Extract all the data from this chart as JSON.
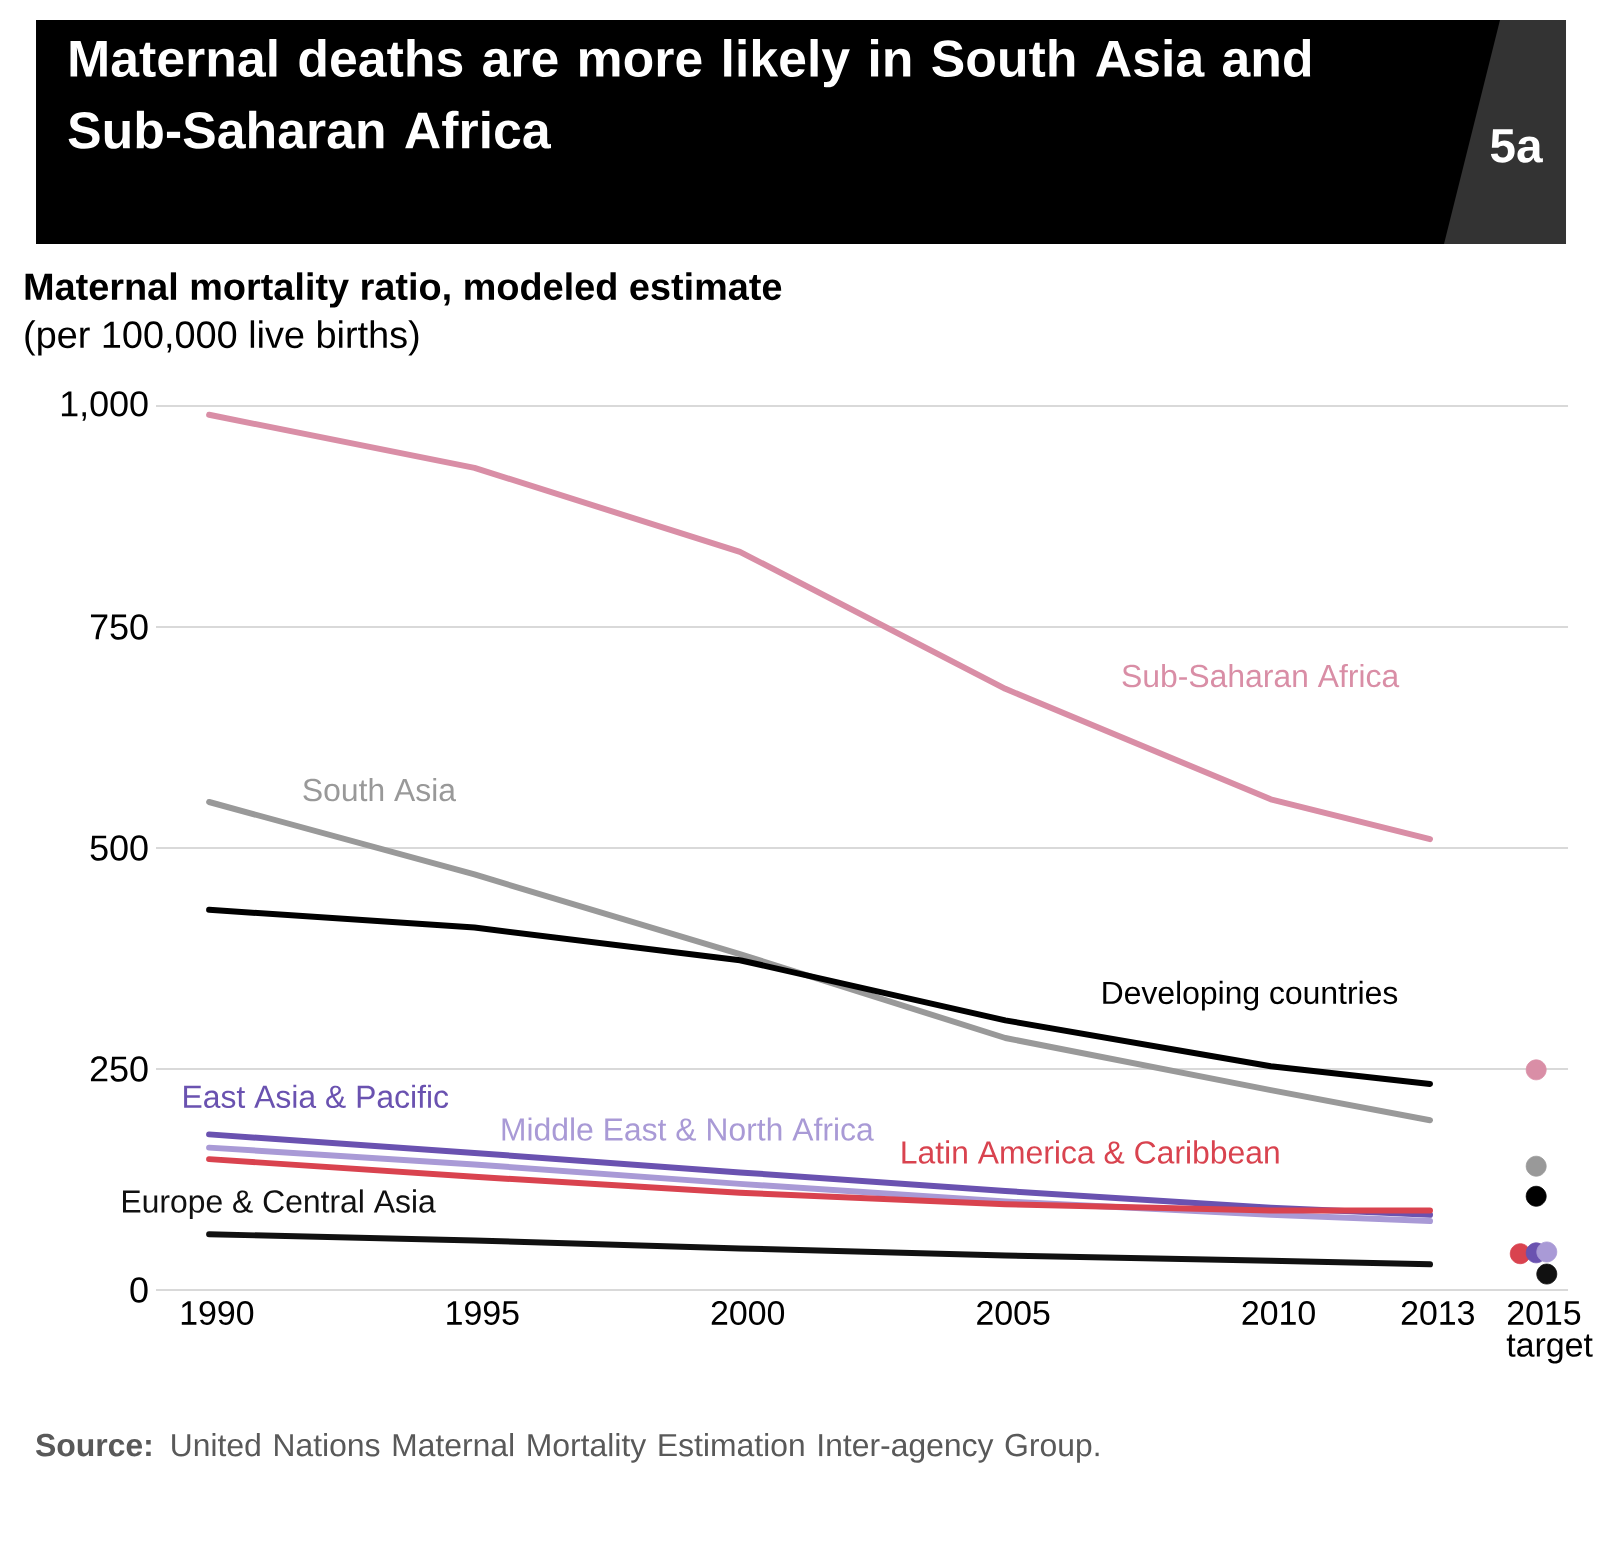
{
  "chart_data": {
    "type": "line",
    "title": "Maternal deaths are more likely in South Asia and Sub-Saharan Africa",
    "subtitle": "Maternal mortality ratio, modeled estimate",
    "ylabel": "(per 100,000 live births)",
    "annotations": [
      "5a",
      "**Source:** United Nations Maternal Mortality Estimation Inter-agency Group."
    ],
    "x": [
      1990,
      1995,
      2000,
      2005,
      2010,
      2013
    ],
    "xlim": [
      1989,
      2015.6
    ],
    "xticks": [
      1990,
      1995,
      2000,
      2005,
      2010,
      2013,
      {
        "value": 2015,
        "label": "2015 target"
      }
    ],
    "ylim": [
      0,
      1000
    ],
    "yticks": [
      0,
      250,
      500,
      750,
      {
        "value": 1000,
        "label": "1,000"
      }
    ],
    "grid": "y",
    "series": [
      {
        "name": "Sub-Saharan Africa",
        "color": "#d98ea6",
        "values": [
          990,
          930,
          835,
          680,
          555,
          510
        ]
      },
      {
        "name": "South Asia",
        "color": "#999999",
        "values": [
          552,
          470,
          380,
          285,
          226,
          192
        ]
      },
      {
        "name": "Developing countries",
        "color": "#000000",
        "values": [
          430,
          410,
          373,
          305,
          253,
          233
        ]
      },
      {
        "name": "East Asia & Pacific",
        "color": "#6a52b0",
        "values": [
          176,
          155,
          133,
          112,
          93,
          85
        ]
      },
      {
        "name": "Middle East & North Africa",
        "color": "#a99ad6",
        "values": [
          161,
          142,
          120,
          100,
          85,
          78
        ]
      },
      {
        "name": "Latin America & Caribbean",
        "color": "#d9434f",
        "values": [
          148,
          128,
          110,
          97,
          90,
          90
        ]
      },
      {
        "name": "Europe & Central Asia",
        "color": "#111111",
        "values": [
          63,
          56,
          47,
          39,
          33,
          29
        ]
      },
      {
        "type": "scatter",
        "x": [
          2015
        ],
        "color": "#d98ea6",
        "values": [
          249
        ]
      },
      {
        "type": "scatter",
        "x": [
          2015
        ],
        "color": "#999999",
        "values": [
          140
        ]
      },
      {
        "type": "scatter",
        "x": [
          2015
        ],
        "color": "#000000",
        "values": [
          106
        ]
      },
      {
        "type": "scatter",
        "x": [
          2014.7
        ],
        "color": "#d9434f",
        "values": [
          41
        ]
      },
      {
        "type": "scatter",
        "x": [
          2015
        ],
        "color": "#6a52b0",
        "values": [
          42
        ]
      },
      {
        "type": "scatter",
        "x": [
          2015.2
        ],
        "color": "#a99ad6",
        "values": [
          43
        ]
      },
      {
        "type": "scatter",
        "x": [
          2015.2
        ],
        "color": "#111111",
        "values": [
          18
        ]
      }
    ]
  }
}
